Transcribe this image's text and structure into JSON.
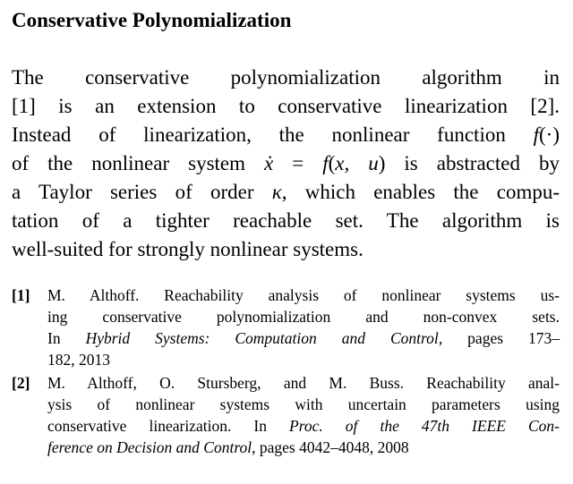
{
  "title": "Conservative Polynomialization",
  "paragraph": {
    "l1": "The conservative polynomialization algorithm in",
    "l2": "[1] is an extension to conservative linearization [2].",
    "l3a": "Instead of linearization, the nonlinear function ",
    "l3b": "f",
    "l3c": "(·)",
    "l4a": "of the nonlinear system ",
    "l4b": "ẋ",
    "l4c": " = ",
    "l4d": "f",
    "l4e": "(",
    "l4f": "x, u",
    "l4g": ") is abstracted by",
    "l5a": "a Taylor series of order ",
    "l5b": "κ",
    "l5c": ", which enables the compu-",
    "l6": "tation of a tighter reachable set.  The algorithm is",
    "l7": "well-suited for strongly nonlinear systems."
  },
  "references": [
    {
      "num": "[1]",
      "l1": "M. Althoff. Reachability analysis of nonlinear systems us-",
      "l2": "ing conservative polynomialization and non-convex sets.",
      "l3a": "In ",
      "l3b": "Hybrid Systems: Computation and Control",
      "l3c": ", pages 173–",
      "l4": "182, 2013"
    },
    {
      "num": "[2]",
      "l1": "M. Althoff, O. Stursberg, and M. Buss. Reachability anal-",
      "l2": "ysis of nonlinear systems with uncertain parameters using",
      "l3a": "conservative linearization. In ",
      "l3b": "Proc. of the 47th IEEE Con-",
      "l4a": "ference on Decision and Control",
      "l4b": ", pages 4042–4048, 2008"
    }
  ]
}
